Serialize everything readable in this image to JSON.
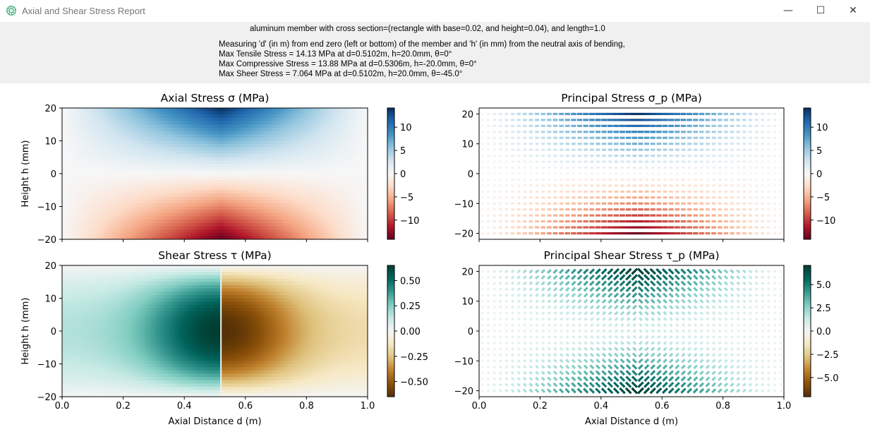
{
  "window": {
    "title": "Axial and Shear Stress Report",
    "controls": {
      "minimize": "—",
      "maximize": "☐",
      "close": "✕"
    }
  },
  "header": {
    "lines": [
      "aluminum member with cross section=(rectangle with base=0.02, and height=0.04), and length=1.0",
      "Measuring 'd' (in m) from end zero (left or bottom) of the member and 'h' (in mm) from the neutral axis of bending,",
      "Max Tensile Stress = 14.13 MPa at d=0.5102m, h=20.0mm, θ=0°",
      "Max Compressive Stress = 13.88 MPa at d=0.5306m, h=-20.0mm, θ=0°",
      "Max Sheer Stress = 7.064 MPa at d=0.5102m, h=20.0mm, θ=-45.0°"
    ]
  },
  "colors": {
    "blue_end": "#053061",
    "red_end": "#67001f",
    "teal_end": "#003c30",
    "brown_end": "#543005",
    "mid": "#f7f7f7"
  },
  "chart_data": [
    {
      "type": "heatmap",
      "title": "Axial Stress σ (MPa)",
      "xlabel": "",
      "ylabel": "Height h (mm)",
      "xlim": [
        0,
        1
      ],
      "ylim": [
        -20,
        20
      ],
      "xticks": [
        "0.0",
        "0.2",
        "0.4",
        "0.6",
        "0.8",
        "1.0"
      ],
      "x_ticklabels_shown": false,
      "yticks": [
        "−20",
        "−10",
        "0",
        "10",
        "20"
      ],
      "colormap": "RdBu",
      "clim": [
        -14.13,
        14.13
      ],
      "colorbar_ticks": [
        "10",
        "5",
        "0",
        "−5",
        "−10"
      ],
      "values": {
        "max": 14.13,
        "max_at": [
          0.5102,
          20
        ],
        "min": -13.88,
        "min_at": [
          0.5306,
          -20
        ]
      }
    },
    {
      "type": "scatter",
      "title": "Principal Stress σ_p (MPa)",
      "xlabel": "",
      "ylabel": "",
      "xlim": [
        0,
        1
      ],
      "ylim": [
        -22,
        22
      ],
      "xticks": [
        "0.0",
        "0.2",
        "0.4",
        "0.6",
        "0.8",
        "1.0"
      ],
      "x_ticklabels_shown": false,
      "yticks": [
        "−20",
        "−10",
        "0",
        "10",
        "20"
      ],
      "colormap": "RdBu",
      "clim": [
        -14.13,
        14.13
      ],
      "colorbar_ticks": [
        "10",
        "5",
        "0",
        "−5",
        "−10"
      ],
      "values": {
        "max": 14.13,
        "min": -13.88
      }
    },
    {
      "type": "heatmap",
      "title": "Shear Stress τ (MPa)",
      "xlabel": "Axial Distance d (m)",
      "ylabel": "Height h (mm)",
      "xlim": [
        0,
        1
      ],
      "ylim": [
        -20,
        20
      ],
      "xticks": [
        "0.0",
        "0.2",
        "0.4",
        "0.6",
        "0.8",
        "1.0"
      ],
      "yticks": [
        "−20",
        "−10",
        "0",
        "10",
        "20"
      ],
      "colormap": "BrBG",
      "clim": [
        -0.65,
        0.65
      ],
      "colorbar_ticks": [
        "0.50",
        "0.25",
        "0.00",
        "−0.25",
        "−0.50"
      ],
      "values": {
        "max": 0.65,
        "min": -0.65,
        "discontinuity_at_d": 0.52
      }
    },
    {
      "type": "scatter",
      "title": "Principal Shear Stress τ_p (MPa)",
      "xlabel": "Axial Distance d (m)",
      "ylabel": "",
      "xlim": [
        0,
        1
      ],
      "ylim": [
        -22,
        22
      ],
      "xticks": [
        "0.0",
        "0.2",
        "0.4",
        "0.6",
        "0.8",
        "1.0"
      ],
      "yticks": [
        "−20",
        "−10",
        "0",
        "10",
        "20"
      ],
      "colormap": "BrBG",
      "clim": [
        -7.064,
        7.064
      ],
      "colorbar_ticks": [
        "5.0",
        "2.5",
        "0.0",
        "−2.5",
        "−5.0"
      ],
      "values": {
        "max": 7.064,
        "max_at": [
          0.5102,
          20
        ]
      }
    }
  ]
}
